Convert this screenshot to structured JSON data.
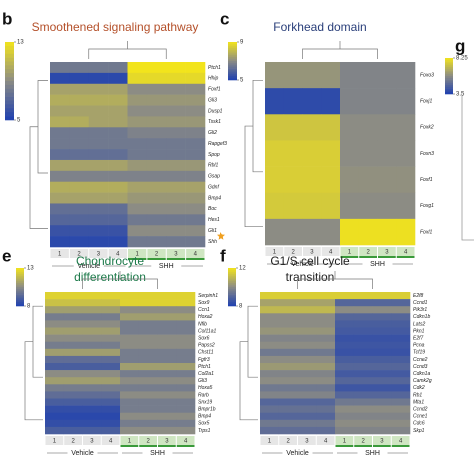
{
  "chart_data": [
    {
      "type": "heatmap",
      "panel": "b",
      "title": [
        "Smoothened signaling pathway"
      ],
      "title_color": "#b4502a",
      "rows": [
        "Ptch1",
        "Hhip",
        "Foxf1",
        "Gli3",
        "Dusp1",
        "Tssk1",
        "Gli2",
        "Rapgef3",
        "Spop",
        "Rbl1",
        "Gsap",
        "Gdnf",
        "Bmp4",
        "Boc",
        "Hes1",
        "Gli1",
        "Shh"
      ],
      "columns": [
        "1",
        "2",
        "3",
        "4",
        "1",
        "2",
        "3",
        "4"
      ],
      "groups": [
        "Vehicle",
        "SHH"
      ],
      "values": [
        [
          8,
          8,
          8,
          8,
          13,
          13,
          13,
          13
        ],
        [
          5.5,
          5.5,
          5.5,
          5.5,
          12.5,
          12.5,
          12.5,
          12.5
        ],
        [
          10,
          10,
          10,
          10,
          9,
          9,
          9,
          9
        ],
        [
          10.5,
          10.5,
          10.5,
          10.5,
          9.5,
          9.5,
          9.5,
          9.5
        ],
        [
          10,
          10,
          10,
          10,
          9,
          9,
          9,
          9
        ],
        [
          10.5,
          10.5,
          10,
          10,
          9.5,
          9.5,
          9.5,
          9.5
        ],
        [
          8,
          8,
          8,
          8,
          8.5,
          8.5,
          8.5,
          8.5
        ],
        [
          8,
          8,
          8,
          8,
          8,
          8,
          8,
          8
        ],
        [
          7.5,
          7.5,
          7.5,
          7.5,
          8,
          8,
          8,
          8
        ],
        [
          10,
          10,
          10,
          10,
          9.5,
          9.5,
          9.5,
          9.5
        ],
        [
          8.5,
          8.5,
          8.5,
          8.5,
          8.5,
          8.5,
          8.5,
          8.5
        ],
        [
          10.5,
          10.5,
          10.5,
          10.5,
          10,
          10,
          10,
          10
        ],
        [
          10,
          10,
          10,
          10,
          9.5,
          9.5,
          9.5,
          9.5
        ],
        [
          7.5,
          7.5,
          7.5,
          7.5,
          9,
          9,
          9,
          9
        ],
        [
          7,
          7,
          7,
          7,
          8,
          8,
          8,
          8
        ],
        [
          6,
          6,
          6,
          6,
          9,
          9,
          9,
          9
        ],
        [
          5.5,
          5.5,
          5.5,
          5.5,
          8,
          8,
          8,
          8
        ]
      ],
      "clim": [
        5,
        13
      ],
      "cticks": [
        13,
        5
      ]
    },
    {
      "type": "heatmap",
      "panel": "c",
      "title": [
        "Forkhead domain"
      ],
      "title_color": "#2a3f7a",
      "rows": [
        "Foxo3",
        "Foxj1",
        "Foxk2",
        "Foxn3",
        "Foxf1",
        "Foxg1",
        "Foxl1"
      ],
      "columns": [
        "1",
        "2",
        "3",
        "4",
        "1",
        "2",
        "3",
        "4"
      ],
      "groups": [
        "Vehicle",
        "SHH"
      ],
      "values": [
        [
          7.2,
          7.2,
          7.2,
          7.2,
          6.8,
          6.8,
          6.8,
          6.8
        ],
        [
          5.3,
          5.3,
          5.3,
          5.3,
          6.8,
          6.8,
          6.8,
          6.8
        ],
        [
          8.3,
          8.3,
          8.3,
          8.3,
          7,
          7,
          7,
          7
        ],
        [
          8.5,
          8.5,
          8.5,
          8.5,
          7,
          7,
          7,
          7
        ],
        [
          8.5,
          8.5,
          8.5,
          8.5,
          7.1,
          7.1,
          7.1,
          7.1
        ],
        [
          8.4,
          8.4,
          8.4,
          8.4,
          7,
          7,
          7,
          7
        ],
        [
          7,
          7,
          7,
          7,
          8.9,
          8.9,
          8.9,
          8.9
        ]
      ],
      "clim": [
        5,
        9
      ],
      "cticks": [
        9,
        5
      ]
    },
    {
      "type": "heatmap",
      "panel": "e",
      "title": [
        "Chondrocyte",
        "differentiation"
      ],
      "title_color": "#1d7a4a",
      "rows": [
        "Serpinh1",
        "Sox9",
        "Ccn1",
        "Hoxa2",
        "Nfib",
        "Col11a1",
        "Sox6",
        "Papss2",
        "Chst11",
        "Fgfr3",
        "Ptch1",
        "Col2a1",
        "Gli3",
        "Hoxa5",
        "Rarb",
        "Snx19",
        "Bmpr1b",
        "Bmp4",
        "Sox5",
        "Trps1"
      ],
      "columns": [
        "1",
        "2",
        "3",
        "4",
        "1",
        "2",
        "3",
        "4"
      ],
      "groups": [
        "Vehicle",
        "SHH"
      ],
      "values": [
        [
          12.5,
          12.5,
          12.5,
          12.5,
          12.5,
          12.5,
          12.5,
          12.5
        ],
        [
          12,
          12,
          12,
          12,
          12.5,
          12.5,
          12.5,
          12.5
        ],
        [
          11,
          11,
          11,
          11,
          10.5,
          10.5,
          10.5,
          10.5
        ],
        [
          10,
          10,
          10,
          10,
          11,
          11,
          11,
          11
        ],
        [
          10.5,
          10.5,
          10.5,
          10.5,
          10,
          10,
          10,
          10
        ],
        [
          11,
          11,
          11,
          11,
          10,
          10,
          10,
          10
        ],
        [
          10.5,
          10.5,
          10.5,
          10.5,
          10.5,
          10.5,
          10.5,
          10.5
        ],
        [
          10,
          10,
          10,
          10,
          10.5,
          10.5,
          10.5,
          10.5
        ],
        [
          11,
          11,
          11,
          11,
          10,
          10,
          10,
          10
        ],
        [
          9.5,
          9.5,
          9.5,
          9.5,
          10,
          10,
          10,
          10
        ],
        [
          9,
          9,
          9,
          9,
          11,
          11,
          11,
          11
        ],
        [
          10.5,
          10.5,
          10.5,
          10.5,
          10,
          10,
          10,
          10
        ],
        [
          11,
          11,
          11,
          11,
          10.5,
          10.5,
          10.5,
          10.5
        ],
        [
          10,
          10,
          10,
          10,
          10,
          10,
          10,
          10
        ],
        [
          9.5,
          9.5,
          9.5,
          9.5,
          10.5,
          10.5,
          10.5,
          10.5
        ],
        [
          9,
          9,
          9,
          9,
          10,
          10,
          10,
          10
        ],
        [
          8.5,
          8.5,
          8.5,
          8.5,
          10,
          10,
          10,
          10
        ],
        [
          8.3,
          8.3,
          8.3,
          8.3,
          10.5,
          10.5,
          10.5,
          10.5
        ],
        [
          8.5,
          8.5,
          8.5,
          8.5,
          10,
          10,
          10,
          10
        ],
        [
          9,
          9,
          9,
          9,
          10.5,
          10.5,
          10.5,
          10.5
        ]
      ],
      "clim": [
        8,
        13
      ],
      "cticks": [
        13,
        8
      ]
    },
    {
      "type": "heatmap",
      "panel": "f",
      "title": [
        "G1/S cell cycle",
        "transition"
      ],
      "title_color": "#222222",
      "rows": [
        "E2f8",
        "Ccnd1",
        "Pik3r1",
        "Cdkn1b",
        "Lats2",
        "Pkn1",
        "E2f7",
        "Pcna",
        "Tcf19",
        "Ccne2",
        "Ccnd3",
        "Cdkn1a",
        "Camk2g",
        "Cdk2",
        "Rb1",
        "Mta1",
        "Ccnd2",
        "Ccne1",
        "Cdc6",
        "Skp1"
      ],
      "columns": [
        "1",
        "2",
        "3",
        "4",
        "1",
        "2",
        "3",
        "4"
      ],
      "groups": [
        "Vehicle",
        "SHH"
      ],
      "values": [
        [
          11.5,
          11.5,
          11.5,
          11.5,
          11.5,
          11.5,
          11.5,
          11.5
        ],
        [
          10.5,
          10.5,
          10.5,
          10.5,
          9,
          9,
          9,
          9
        ],
        [
          11,
          11,
          11,
          11,
          10,
          10,
          10,
          10
        ],
        [
          10,
          10,
          10,
          10,
          9,
          9,
          9,
          9
        ],
        [
          10,
          10,
          10,
          10,
          8.8,
          8.8,
          8.8,
          8.8
        ],
        [
          10.2,
          10.2,
          10.2,
          10.2,
          8.7,
          8.7,
          8.7,
          8.7
        ],
        [
          9.8,
          9.8,
          9.8,
          9.8,
          8.5,
          8.5,
          8.5,
          8.5
        ],
        [
          10,
          10,
          10,
          10,
          8.6,
          8.6,
          8.6,
          8.6
        ],
        [
          9.5,
          9.5,
          9.5,
          9.5,
          8.5,
          8.5,
          8.5,
          8.5
        ],
        [
          10,
          10,
          10,
          10,
          8.8,
          8.8,
          8.8,
          8.8
        ],
        [
          10.3,
          10.3,
          10.3,
          10.3,
          9,
          9,
          9,
          9
        ],
        [
          9.8,
          9.8,
          9.8,
          9.8,
          8.7,
          8.7,
          8.7,
          8.7
        ],
        [
          10,
          10,
          10,
          10,
          9,
          9,
          9,
          9
        ],
        [
          9.5,
          9.5,
          9.5,
          9.5,
          8.6,
          8.6,
          8.6,
          8.6
        ],
        [
          9.8,
          9.8,
          9.8,
          9.8,
          9,
          9,
          9,
          9
        ],
        [
          9,
          9,
          9,
          9,
          9.5,
          9.5,
          9.5,
          9.5
        ],
        [
          9.3,
          9.3,
          9.3,
          9.3,
          10,
          10,
          10,
          10
        ],
        [
          9,
          9,
          9,
          9,
          9.8,
          9.8,
          9.8,
          9.8
        ],
        [
          9.5,
          9.5,
          9.5,
          9.5,
          10,
          10,
          10,
          10
        ],
        [
          9.2,
          9.2,
          9.2,
          9.2,
          9.8,
          9.8,
          9.8,
          9.8
        ]
      ],
      "clim": [
        8,
        12
      ],
      "cticks": [
        12,
        8
      ]
    },
    {
      "type": "heatmap",
      "panel": "g",
      "clim": [
        3.5,
        8.25
      ],
      "cticks": [
        8.25,
        3.5
      ]
    }
  ]
}
